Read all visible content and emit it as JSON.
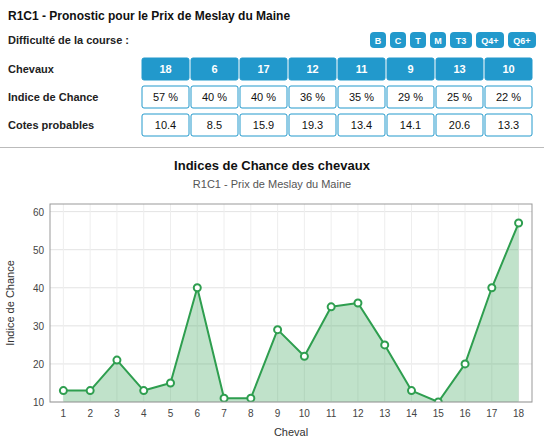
{
  "chart_data": [
    {
      "type": "table",
      "title": "R1C1 - Pronostic pour le Prix de Meslay du Maine",
      "subtitle": "Difficulté de la course :",
      "color": "#2299cc",
      "annotations": [
        "B",
        "C",
        "T",
        "M",
        "T3",
        "Q4+",
        "Q6+"
      ],
      "series": [
        {
          "name": "Chevaux",
          "values": [
            18,
            6,
            17,
            12,
            11,
            9,
            13,
            10
          ]
        },
        {
          "name": "Indice de Chance",
          "values": [
            57,
            40,
            40,
            36,
            35,
            29,
            25,
            22
          ],
          "value_labels": [
            "57 %",
            "40 %",
            "40 %",
            "36 %",
            "35 %",
            "29 %",
            "25 %",
            "22 %"
          ]
        },
        {
          "name": "Cotes probables",
          "values": [
            10.4,
            8.5,
            15.9,
            19.3,
            13.4,
            14.1,
            20.6,
            13.3
          ]
        }
      ]
    },
    {
      "type": "area",
      "title": "Indices de Chance des chevaux",
      "subtitle": "R1C1 - Prix de Meslay du Maine",
      "x_label": "Cheval",
      "y_label": "Indice de Chance",
      "x": [
        1,
        2,
        3,
        4,
        5,
        6,
        7,
        8,
        9,
        10,
        11,
        12,
        13,
        14,
        15,
        16,
        17,
        18
      ],
      "values": [
        13,
        13,
        21,
        13,
        15,
        40,
        11,
        11,
        29,
        22,
        35,
        36,
        25,
        13,
        10,
        20,
        40,
        57
      ],
      "color": "#2e9e4f",
      "marker": "circle",
      "xlim": [
        0.5,
        18.5
      ],
      "xticks": [
        1,
        2,
        3,
        4,
        5,
        6,
        7,
        8,
        9,
        10,
        11,
        12,
        13,
        14,
        15,
        16,
        17,
        18
      ],
      "ylim": [
        10,
        62
      ],
      "yticks": [
        10,
        20,
        30,
        40,
        50,
        60
      ],
      "grid": true
    }
  ]
}
